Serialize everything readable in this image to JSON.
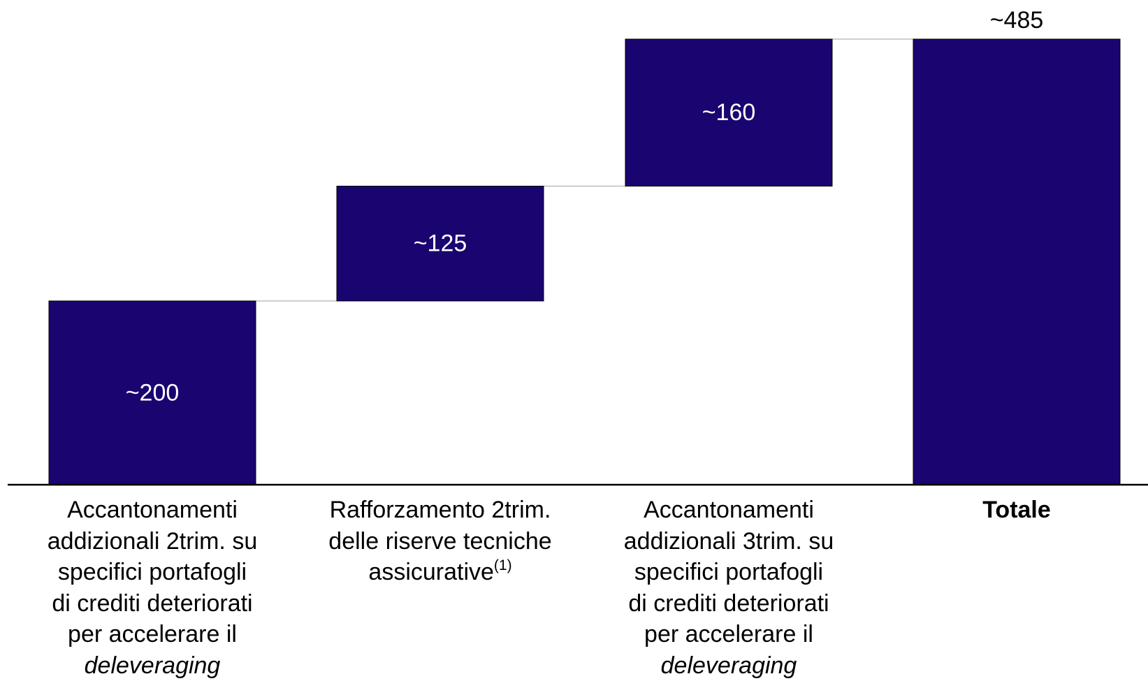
{
  "colors": {
    "bar": "#1a0470",
    "bar_outline": "#000000",
    "connector": "#bfbfbf",
    "baseline": "#000000",
    "inner_label": "#ffffff",
    "outer_label": "#000000"
  },
  "chart_data": {
    "type": "bar",
    "subtype": "waterfall",
    "title": "",
    "xlabel": "",
    "ylabel": "",
    "ylim": [
      0,
      485
    ],
    "categories": [
      "Accantonamenti addizionali 2trim. su specifici portafogli di crediti deteriorati per accelerare il deleveraging",
      "Rafforzamento 2trim. delle riserve tecniche assicurative(1)",
      "Accantonamenti addizionali 3trim. su specifici portafogli di crediti deteriorati per accelerare il deleveraging",
      "Totale"
    ],
    "category_lines": [
      [
        {
          "t": "Accantonamenti"
        },
        {
          "t": "addizionali 2trim. su"
        },
        {
          "t": "specifici portafogli"
        },
        {
          "t": "di crediti deteriorati"
        },
        {
          "t": "per accelerare il"
        },
        {
          "t": "deleveraging",
          "style": "italic"
        }
      ],
      [
        {
          "t": "Rafforzamento 2trim."
        },
        {
          "t": "delle riserve tecniche"
        },
        {
          "t": "assicurative",
          "sup": "(1)"
        }
      ],
      [
        {
          "t": "Accantonamenti"
        },
        {
          "t": "addizionali 3trim. su"
        },
        {
          "t": "specifici portafogli"
        },
        {
          "t": "di crediti deteriorati"
        },
        {
          "t": "per accelerare il"
        },
        {
          "t": "deleveraging",
          "style": "italic"
        }
      ],
      [
        {
          "t": "Totale",
          "style": "bold"
        }
      ]
    ],
    "values": [
      200,
      125,
      160,
      485
    ],
    "is_total": [
      false,
      false,
      false,
      true
    ],
    "data_labels": [
      "~200",
      "~125",
      "~160",
      "~485"
    ],
    "data_label_position": [
      "inside",
      "inside",
      "inside",
      "above"
    ],
    "grid": false,
    "legend": "none"
  }
}
